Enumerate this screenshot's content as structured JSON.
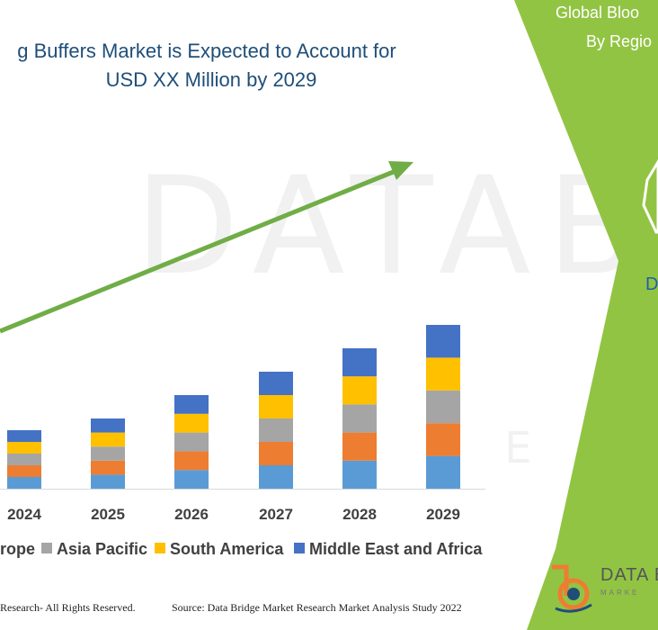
{
  "chart_data": {
    "type": "bar",
    "stacked": true,
    "title_line1": "g Buffers Market is Expected to Account for",
    "title_line2": "USD XX Million by 2029",
    "categories": [
      "2024",
      "2025",
      "2026",
      "2027",
      "2028",
      "2029"
    ],
    "series": [
      {
        "name": "",
        "color": "#5b9bd5",
        "values": [
          1.0,
          1.2,
          1.6,
          2.0,
          2.4,
          2.8
        ]
      },
      {
        "name": "",
        "color": "#ed7d31",
        "values": [
          1.0,
          1.2,
          1.6,
          2.0,
          2.4,
          2.8
        ]
      },
      {
        "name": "Asia Pacific",
        "color": "#a5a5a5",
        "values": [
          1.0,
          1.2,
          1.6,
          2.0,
          2.4,
          2.8
        ]
      },
      {
        "name": "South America",
        "color": "#ffc000",
        "values": [
          1.0,
          1.2,
          1.6,
          2.0,
          2.4,
          2.8
        ]
      },
      {
        "name": "Middle East and Africa",
        "color": "#4472c4",
        "values": [
          1.0,
          1.2,
          1.6,
          2.0,
          2.4,
          2.8
        ]
      }
    ],
    "legend_partial_label": "rope",
    "legend_position": "bottom",
    "grid": false,
    "trend_arrow_color": "#70ad47"
  },
  "watermark": {
    "main": "DATABRI",
    "sub": "MARKETRE"
  },
  "footer": {
    "left": "Research- All Rights Reserved.",
    "right": "Source: Data Bridge Market Research Market Analysis Study 2022"
  },
  "side_panel": {
    "color": "#92c444",
    "title_line1": "Global Bloo",
    "title_line2": "By Regio",
    "partial_letter": "D",
    "logo_text": "DATA B",
    "logo_sub": "MARKE"
  }
}
